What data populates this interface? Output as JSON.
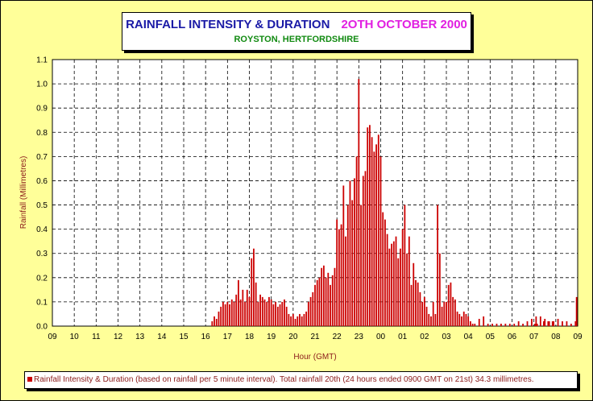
{
  "title": {
    "main": "RAINFALL INTENSITY & DURATION",
    "date": "2OTH OCTOBER 2000",
    "subtitle": "ROYSTON, HERTFORDSHIRE"
  },
  "colors": {
    "background": "#ffff99",
    "bars": "#cc0000",
    "title_main": "#1a1aa6",
    "title_date": "#e11fe1",
    "subtitle": "#118a11",
    "axis_titles": "#8b1a1a"
  },
  "legend": {
    "label": "Rainfall Intensity & Duration (based on rainfall per 5 minute interval). Total rainfall 20th (24 hours ended 0900 GMT on 21st) 34.3 millimetres."
  },
  "chart_data": {
    "type": "bar",
    "xlabel": "Hour (GMT)",
    "ylabel": "Rainfall (Millimetres)",
    "ylim": [
      0,
      1.1
    ],
    "y_ticks": [
      "0.0",
      "0.1",
      "0.2",
      "0.3",
      "0.4",
      "0.5",
      "0.6",
      "0.7",
      "0.8",
      "0.9",
      "1.0",
      "1.1"
    ],
    "x_ticks": [
      "09",
      "10",
      "11",
      "12",
      "13",
      "14",
      "15",
      "16",
      "17",
      "18",
      "19",
      "20",
      "21",
      "22",
      "23",
      "00",
      "01",
      "02",
      "03",
      "04",
      "05",
      "06",
      "07",
      "08",
      "09"
    ],
    "grid": true,
    "legend_position": "bottom",
    "interval_minutes": 5,
    "series": [
      {
        "name": "Rainfall Intensity & Duration",
        "x_hours": [
          16.3,
          16.4,
          16.5,
          16.6,
          16.7,
          16.8,
          16.9,
          17.0,
          17.1,
          17.2,
          17.3,
          17.4,
          17.5,
          17.6,
          17.7,
          17.8,
          17.9,
          18.0,
          18.1,
          18.2,
          18.3,
          18.4,
          18.5,
          18.6,
          18.7,
          18.8,
          18.9,
          19.0,
          19.1,
          19.2,
          19.3,
          19.4,
          19.5,
          19.6,
          19.7,
          19.8,
          19.9,
          20.0,
          20.1,
          20.2,
          20.3,
          20.4,
          20.5,
          20.6,
          20.7,
          20.8,
          20.9,
          21.0,
          21.1,
          21.2,
          21.3,
          21.4,
          21.5,
          21.6,
          21.7,
          21.8,
          21.9,
          22.0,
          22.1,
          22.2,
          22.3,
          22.4,
          22.5,
          22.6,
          22.7,
          22.8,
          22.9,
          23.0,
          23.1,
          23.2,
          23.3,
          23.4,
          23.5,
          23.6,
          23.7,
          23.8,
          23.9,
          24.0,
          24.1,
          24.2,
          24.3,
          24.4,
          24.5,
          24.6,
          24.7,
          24.8,
          24.9,
          25.0,
          25.1,
          25.2,
          25.3,
          25.4,
          25.5,
          25.6,
          25.7,
          25.8,
          25.9,
          26.0,
          26.1,
          26.2,
          26.3,
          26.4,
          26.5,
          26.6,
          26.7,
          26.8,
          26.9,
          27.0,
          27.1,
          27.2,
          27.3,
          27.4,
          27.5,
          27.6,
          27.7,
          27.8,
          27.9,
          28.0,
          28.1,
          28.2,
          28.3,
          28.5,
          28.7,
          28.9,
          29.1,
          29.3,
          29.5,
          29.7,
          29.9,
          30.1,
          30.3,
          30.5,
          30.7,
          30.9,
          31.1,
          31.3,
          31.5,
          31.7,
          31.9,
          32.1,
          32.3,
          32.5,
          32.7,
          32.9,
          32.95,
          31.05,
          31.15,
          31.45,
          31.65,
          31.85
        ],
        "values": [
          0.02,
          0.04,
          0.03,
          0.06,
          0.08,
          0.1,
          0.09,
          0.1,
          0.09,
          0.11,
          0.1,
          0.13,
          0.19,
          0.11,
          0.15,
          0.1,
          0.15,
          0.12,
          0.28,
          0.32,
          0.18,
          0.1,
          0.13,
          0.12,
          0.11,
          0.1,
          0.12,
          0.11,
          0.09,
          0.1,
          0.08,
          0.09,
          0.1,
          0.11,
          0.08,
          0.05,
          0.04,
          0.05,
          0.03,
          0.04,
          0.05,
          0.04,
          0.05,
          0.06,
          0.1,
          0.12,
          0.14,
          0.17,
          0.19,
          0.2,
          0.24,
          0.25,
          0.2,
          0.22,
          0.17,
          0.21,
          0.24,
          0.44,
          0.4,
          0.42,
          0.58,
          0.37,
          0.5,
          0.6,
          0.52,
          0.61,
          0.7,
          1.02,
          0.5,
          0.62,
          0.64,
          0.82,
          0.83,
          0.78,
          0.72,
          0.75,
          0.79,
          0.7,
          0.47,
          0.44,
          0.38,
          0.32,
          0.34,
          0.35,
          0.37,
          0.28,
          0.32,
          0.4,
          0.5,
          0.3,
          0.37,
          0.17,
          0.26,
          0.19,
          0.18,
          0.14,
          0.1,
          0.12,
          0.08,
          0.05,
          0.04,
          0.1,
          0.05,
          0.5,
          0.3,
          0.08,
          0.1,
          0.1,
          0.17,
          0.18,
          0.12,
          0.11,
          0.06,
          0.05,
          0.04,
          0.06,
          0.05,
          0.04,
          0.02,
          0.01,
          0.01,
          0.03,
          0.04,
          0.01,
          0.01,
          0.01,
          0.01,
          0.01,
          0.01,
          0.01,
          0.02,
          0.01,
          0.02,
          0.03,
          0.04,
          0.04,
          0.03,
          0.02,
          0.02,
          0.03,
          0.02,
          0.02,
          0.01,
          0.02,
          0.12,
          0.01,
          0.01,
          0.02,
          0.02,
          0.02
        ]
      }
    ]
  }
}
